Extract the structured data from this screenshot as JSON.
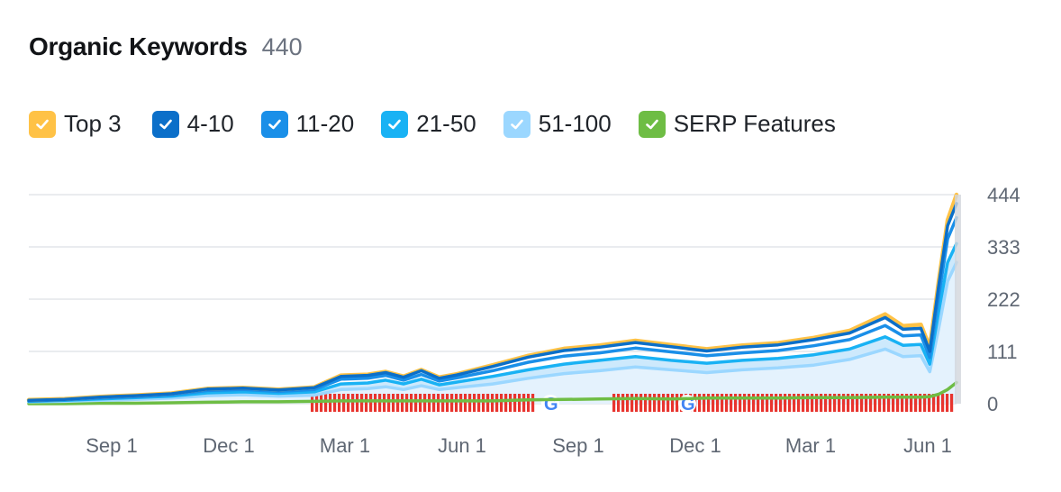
{
  "header": {
    "title": "Organic Keywords",
    "count": "440"
  },
  "legend": [
    {
      "label": "Top 3",
      "color": "#ffc246",
      "icon": "check-icon"
    },
    {
      "label": "4-10",
      "color": "#0b6fc9",
      "icon": "check-icon"
    },
    {
      "label": "11-20",
      "color": "#1a8fe8",
      "icon": "check-icon"
    },
    {
      "label": "21-50",
      "color": "#19b2f4",
      "icon": "check-icon"
    },
    {
      "label": "51-100",
      "color": "#9bd7ff",
      "icon": "check-icon"
    },
    {
      "label": "SERP Features",
      "color": "#6ebd44",
      "icon": "check-icon"
    }
  ],
  "chart_data": {
    "type": "area",
    "x_ticks": [
      "Sep 1",
      "Dec 1",
      "Mar 1",
      "Jun 1",
      "Sep 1",
      "Dec 1",
      "Mar 1",
      "Jun 1"
    ],
    "y_ticks": [
      "444",
      "333",
      "222",
      "111",
      "0"
    ],
    "ylim": [
      0,
      444
    ],
    "grid": true,
    "x": [
      0,
      4,
      8,
      12,
      16,
      20,
      24,
      28,
      32,
      35,
      38,
      40,
      42,
      44,
      46,
      48,
      52,
      56,
      60,
      64,
      68,
      72,
      76,
      80,
      84,
      88,
      92,
      96,
      98,
      100,
      101,
      102,
      103,
      104
    ],
    "series": [
      {
        "name": "Top 3",
        "color": "#ffc246",
        "values": [
          8,
          10,
          15,
          18,
          22,
          32,
          34,
          30,
          35,
          60,
          62,
          68,
          58,
          72,
          56,
          63,
          82,
          102,
          117,
          124,
          134,
          125,
          116,
          124,
          129,
          140,
          155,
          190,
          165,
          168,
          120,
          260,
          390,
          444
        ]
      },
      {
        "name": "4-10",
        "color": "#0b6fc9",
        "values": [
          7,
          9,
          14,
          17,
          21,
          31,
          33,
          29,
          34,
          58,
          60,
          66,
          56,
          70,
          54,
          61,
          79,
          99,
          113,
          120,
          130,
          121,
          112,
          120,
          125,
          136,
          150,
          183,
          158,
          160,
          111,
          250,
          378,
          425
        ]
      },
      {
        "name": "11-20",
        "color": "#1a8fe8",
        "values": [
          6,
          8,
          12,
          15,
          19,
          28,
          30,
          26,
          30,
          52,
          54,
          60,
          50,
          62,
          48,
          55,
          70,
          88,
          101,
          108,
          118,
          110,
          102,
          108,
          113,
          123,
          136,
          166,
          144,
          146,
          98,
          228,
          350,
          395
        ]
      },
      {
        "name": "21-50",
        "color": "#19b2f4",
        "values": [
          5,
          7,
          10,
          13,
          16,
          23,
          25,
          22,
          25,
          42,
          44,
          50,
          42,
          52,
          40,
          46,
          58,
          72,
          84,
          92,
          100,
          92,
          86,
          92,
          96,
          104,
          116,
          142,
          124,
          126,
          84,
          196,
          300,
          340
        ]
      },
      {
        "name": "51-100",
        "color": "#9bd7ff",
        "values": [
          4,
          5,
          7,
          9,
          12,
          17,
          19,
          16,
          18,
          30,
          32,
          36,
          30,
          38,
          30,
          34,
          42,
          54,
          64,
          70,
          78,
          72,
          66,
          72,
          76,
          82,
          94,
          116,
          100,
          102,
          68,
          160,
          260,
          300
        ]
      },
      {
        "name": "SERP Features",
        "color": "#6ebd44",
        "values": [
          0,
          0,
          1,
          1,
          2,
          3,
          4,
          4,
          5,
          6,
          6,
          6,
          6,
          6,
          6,
          6,
          6,
          8,
          9,
          10,
          11,
          10,
          12,
          12,
          12,
          13,
          13,
          14,
          14,
          14,
          15,
          20,
          30,
          45
        ]
      }
    ]
  },
  "serp_markers": {
    "color": "#e8342e",
    "icon": "google-icon"
  }
}
